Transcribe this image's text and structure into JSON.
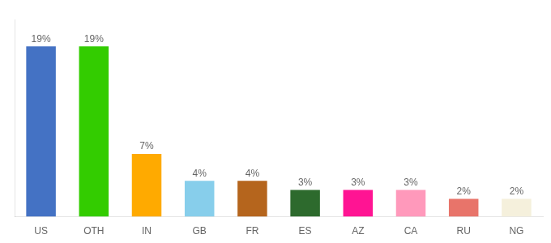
{
  "chart_data": {
    "type": "bar",
    "categories": [
      "US",
      "OTH",
      "IN",
      "GB",
      "FR",
      "ES",
      "AZ",
      "CA",
      "RU",
      "NG"
    ],
    "values": [
      19,
      19,
      7,
      4,
      4,
      3,
      3,
      3,
      2,
      2
    ],
    "colors": [
      "#4472c4",
      "#33cc00",
      "#ffaa00",
      "#87ceeb",
      "#b5651d",
      "#2d6a2d",
      "#ff1493",
      "#ff99bb",
      "#e8746a",
      "#f5f0dc"
    ],
    "ylim": [
      0,
      22
    ],
    "data_labels": true,
    "value_labels": [
      "19%",
      "19%",
      "7%",
      "4%",
      "4%",
      "3%",
      "3%",
      "3%",
      "2%",
      "2%"
    ],
    "tick_labels": "x",
    "grid": false
  }
}
